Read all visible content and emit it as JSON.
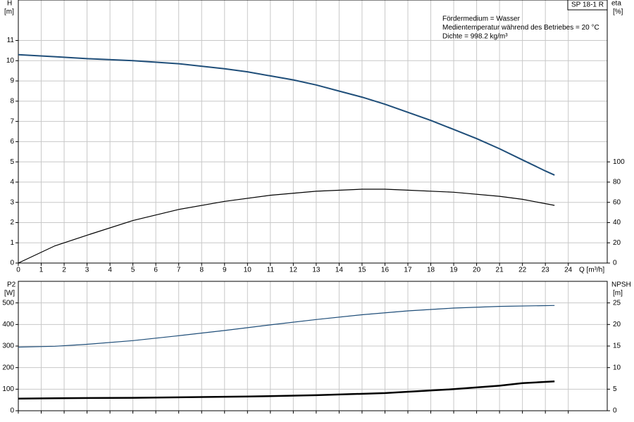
{
  "chart_data": [
    {
      "type": "line",
      "title": "SP 18-1 R",
      "annotations": [
        "Fördermedium = Wasser",
        "Medientemperatur während des Betriebes = 20 °C",
        "Dichte = 998.2 kg/m³"
      ],
      "ylabel": "H",
      "yunit": "[m]",
      "y2label": "eta",
      "y2unit": "[%]",
      "xlabel": "Q [m³/h]",
      "xlim": [
        0,
        25.7
      ],
      "xticks": [
        0,
        1,
        2,
        3,
        4,
        5,
        6,
        7,
        8,
        9,
        10,
        11,
        12,
        13,
        14,
        15,
        16,
        17,
        18,
        19,
        20,
        21,
        22,
        23,
        24
      ],
      "ylim": [
        0,
        13
      ],
      "yticks": [
        0,
        1,
        2,
        3,
        4,
        5,
        6,
        7,
        8,
        9,
        10,
        11
      ],
      "y2lim": [
        0,
        260
      ],
      "y2ticks": [
        0,
        20,
        40,
        60,
        80,
        100
      ],
      "grid": true,
      "series": [
        {
          "color": "#1f4e79",
          "x": [
            0,
            1.6,
            3,
            5,
            7,
            9,
            10,
            11,
            12,
            13,
            14,
            15,
            16,
            17,
            18,
            19,
            20,
            21,
            22,
            23,
            23.4
          ],
          "values": [
            10.3,
            10.2,
            10.1,
            10.0,
            9.85,
            9.6,
            9.45,
            9.25,
            9.05,
            8.8,
            8.5,
            8.2,
            7.85,
            7.45,
            7.05,
            6.6,
            6.15,
            5.65,
            5.1,
            4.55,
            4.35
          ]
        },
        {
          "color": "#000000",
          "axis": "y2",
          "x": [
            0,
            1.6,
            3,
            5,
            7,
            9,
            11,
            13,
            15,
            16,
            17,
            19,
            21,
            22,
            23.4
          ],
          "values": [
            0,
            17,
            27.5,
            42,
            53,
            61,
            67,
            71,
            73,
            73,
            72,
            70,
            66,
            63,
            57
          ]
        }
      ]
    },
    {
      "type": "line",
      "ylabel": "P2",
      "yunit": "[W]",
      "y2label": "NPSH",
      "y2unit": "[m]",
      "xlim": [
        0,
        25.7
      ],
      "xticks": [
        0,
        1,
        2,
        3,
        4,
        5,
        6,
        7,
        8,
        9,
        10,
        11,
        12,
        13,
        14,
        15,
        16,
        17,
        18,
        19,
        20,
        21,
        22,
        23,
        24
      ],
      "ylim": [
        0,
        600
      ],
      "yticks": [
        0,
        100,
        200,
        300,
        400,
        500
      ],
      "y2lim": [
        0,
        30
      ],
      "y2ticks": [
        0,
        5,
        10,
        15,
        20,
        25
      ],
      "grid": true,
      "series": [
        {
          "color": "#1f4e79",
          "x": [
            0,
            1.6,
            3,
            5,
            7,
            9,
            11,
            13,
            15,
            17,
            19,
            21,
            23.4
          ],
          "values": [
            295,
            299,
            308,
            325,
            348,
            372,
            398,
            423,
            445,
            463,
            476,
            484,
            488
          ]
        },
        {
          "color": "#000000",
          "axis": "y2",
          "x": [
            0,
            1.6,
            5,
            10,
            13,
            16,
            19,
            21,
            22,
            23.4
          ],
          "values": [
            2.8,
            2.9,
            3.0,
            3.3,
            3.6,
            4.1,
            5.0,
            5.8,
            6.4,
            6.8
          ]
        }
      ]
    }
  ]
}
